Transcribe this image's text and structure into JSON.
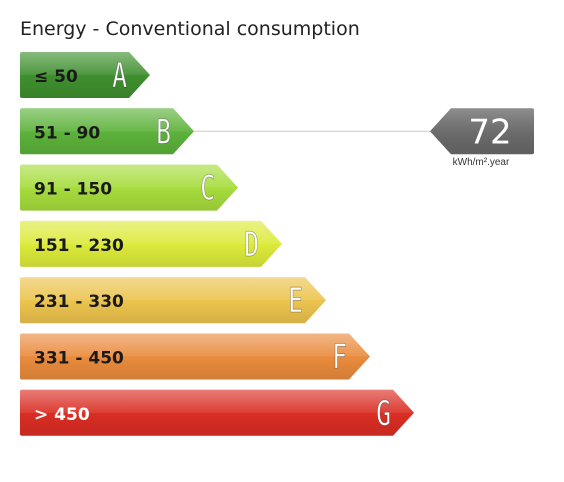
{
  "chart_data": {
    "type": "bar",
    "title": "Energy - Conventional consumption",
    "unit": "kWh/m².year",
    "classes": [
      {
        "letter": "A",
        "range": "≤ 50",
        "color": "#3f8f2e"
      },
      {
        "letter": "B",
        "range": "51 - 90",
        "color": "#5cb23a"
      },
      {
        "letter": "C",
        "range": "91 - 150",
        "color": "#a6dc3c"
      },
      {
        "letter": "D",
        "range": "151 - 230",
        "color": "#dcea3a"
      },
      {
        "letter": "E",
        "range": "231 - 330",
        "color": "#ecc34d"
      },
      {
        "letter": "F",
        "range": "331 - 450",
        "color": "#e98b3c"
      },
      {
        "letter": "G",
        "range": "> 450",
        "color": "#da2d23"
      }
    ],
    "value": "72",
    "value_class": "B",
    "indicator_color": "#6a6a6a"
  }
}
